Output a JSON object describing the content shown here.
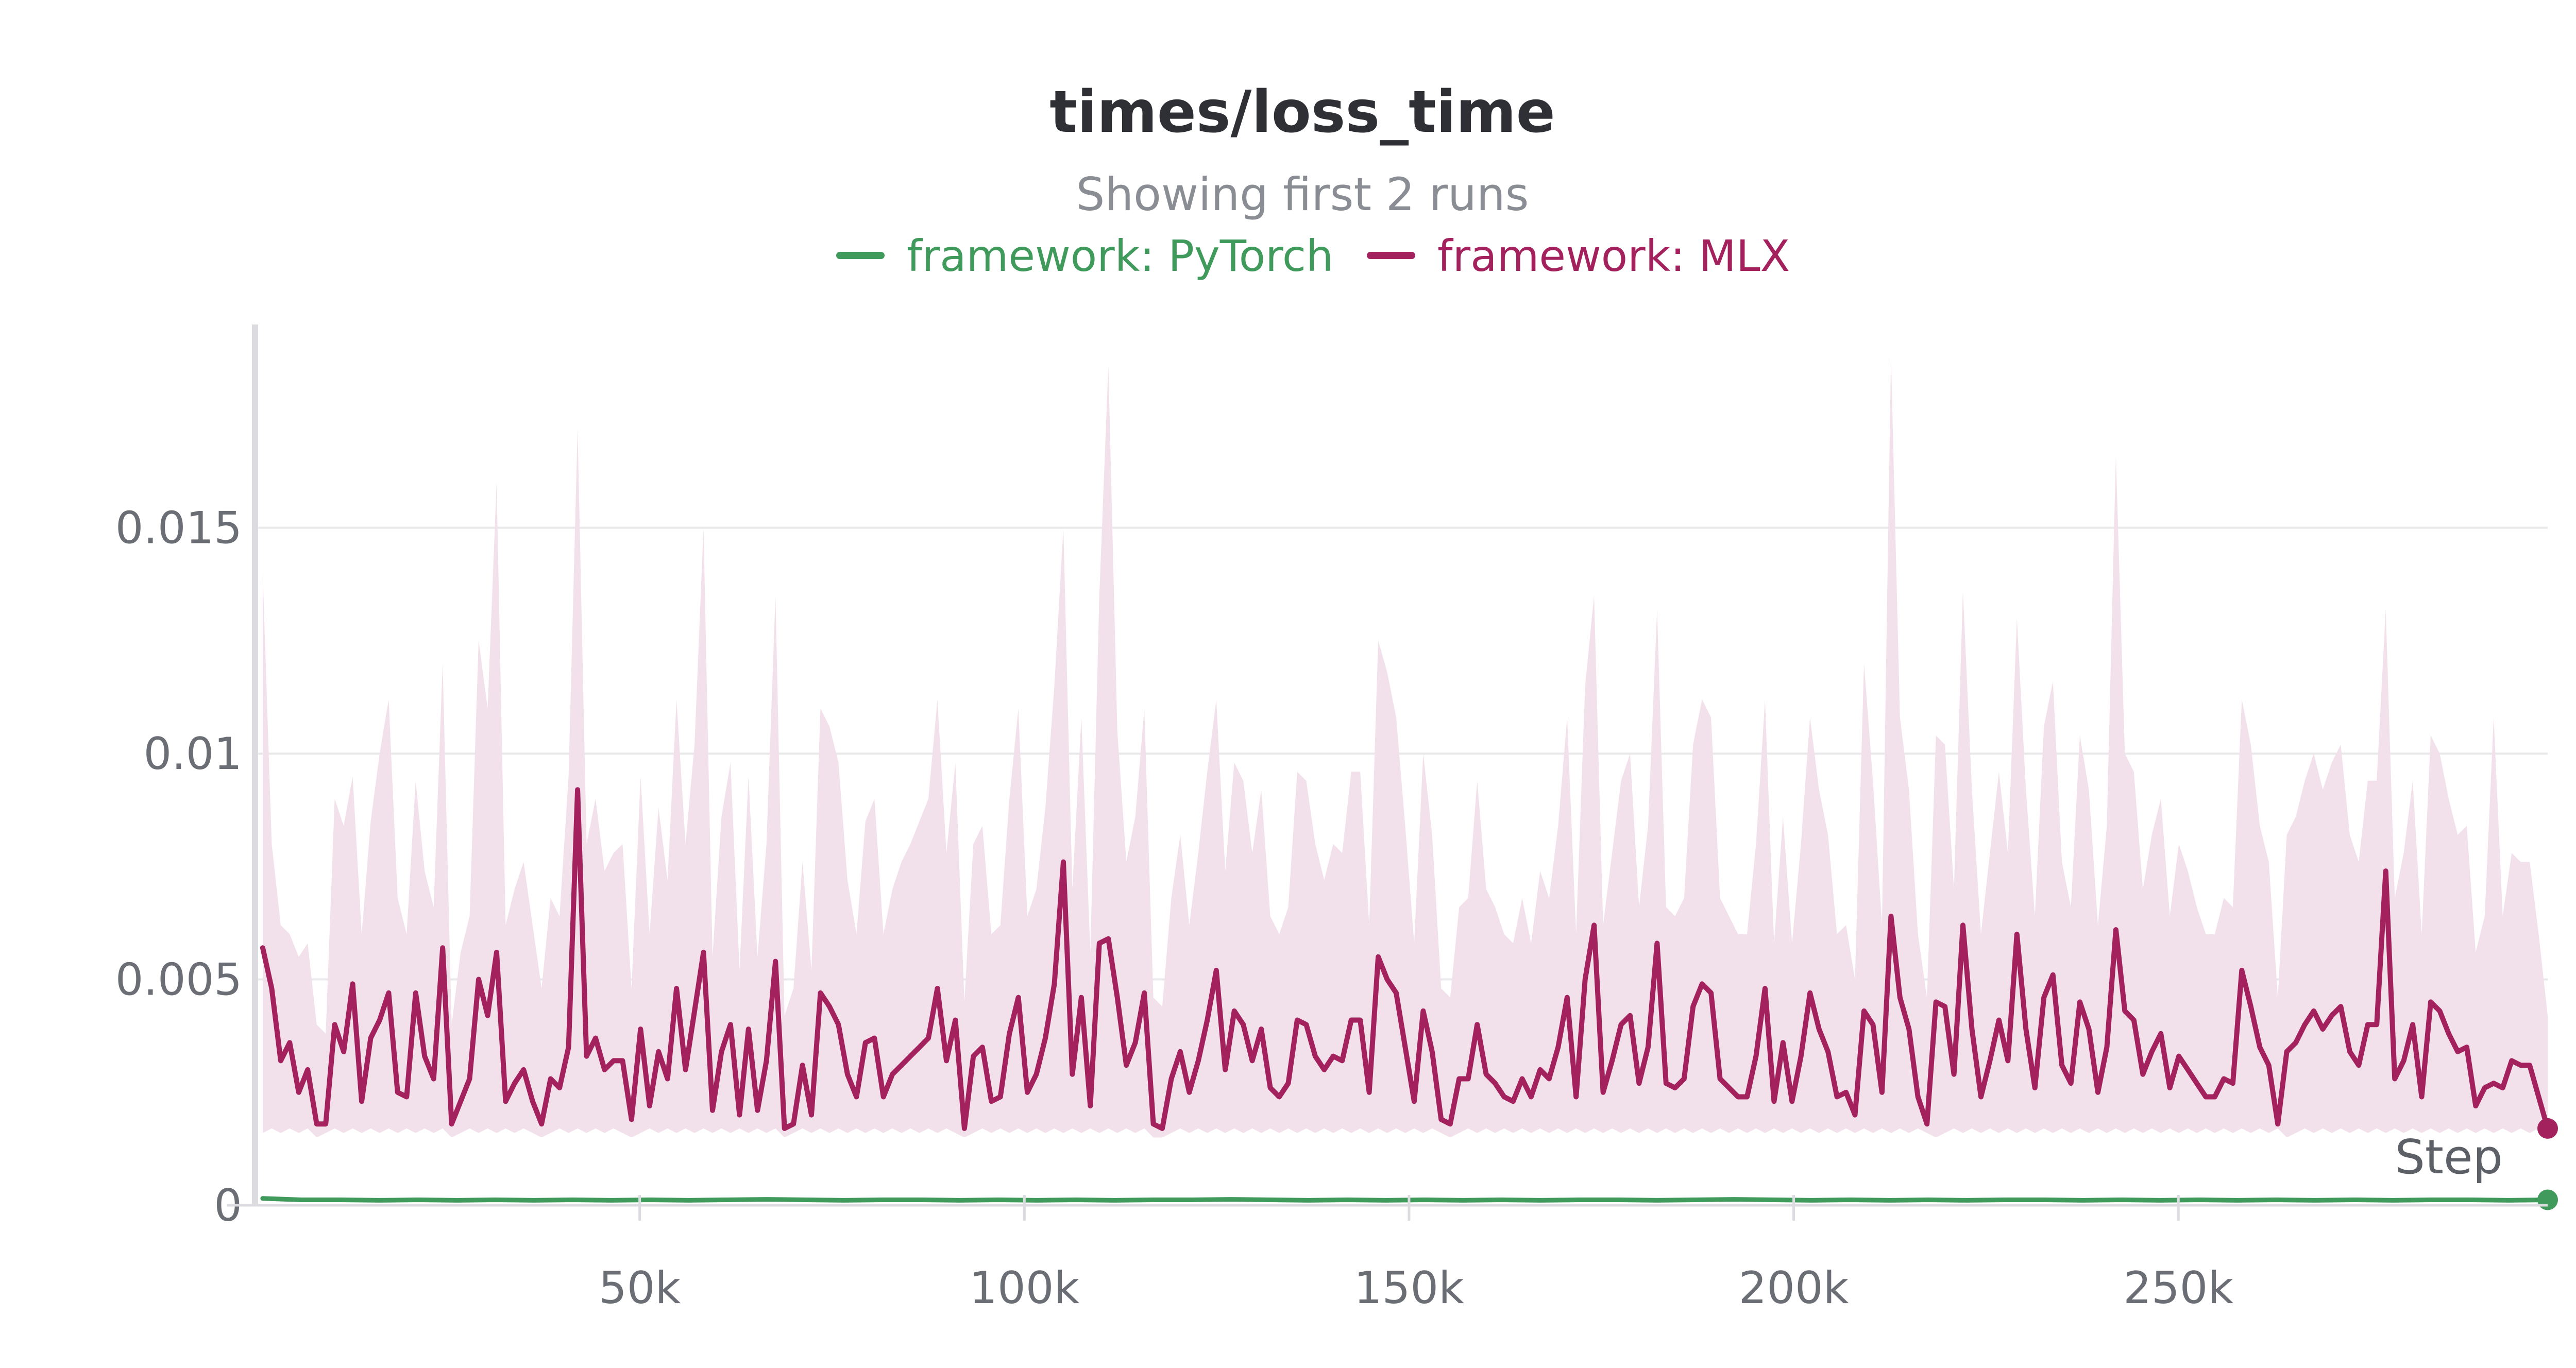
{
  "chart_data": {
    "type": "line",
    "title": "times/loss_time",
    "subtitle": "Showing first 2 runs",
    "xlabel": "Step",
    "ylabel": "",
    "xlim": [
      0,
      298000
    ],
    "ylim": [
      0,
      0.0195
    ],
    "x_ticks": [
      50000,
      100000,
      150000,
      200000,
      250000
    ],
    "x_tick_labels": [
      "50k",
      "100k",
      "150k",
      "200k",
      "250k"
    ],
    "y_ticks": [
      0,
      0.005,
      0.01,
      0.015
    ],
    "y_tick_labels": [
      "0",
      "0.005",
      "0.01",
      "0.015"
    ],
    "grid": true,
    "legend_position": "top-center",
    "colors": {
      "PyTorch": "#3f9a5c",
      "MLX": "#a3225e",
      "mlx_band": "#f2e1ea",
      "grid": "#e9e9ec",
      "axis": "#dcdce0"
    },
    "series": [
      {
        "name": "framework: PyTorch",
        "color": "#3f9a5c",
        "x_start": 1000,
        "x_end": 298000,
        "values": [
          0.00015,
          0.00012,
          0.00012,
          0.00011,
          0.00012,
          0.00011,
          0.00012,
          0.00011,
          0.00012,
          0.00011,
          0.00012,
          0.00011,
          0.00012,
          0.00013,
          0.00012,
          0.00011,
          0.00012,
          0.00012,
          0.00011,
          0.00012,
          0.00011,
          0.00012,
          0.00011,
          0.00012,
          0.00012,
          0.00013,
          0.00012,
          0.00011,
          0.00012,
          0.00011,
          0.00012,
          0.00011,
          0.00012,
          0.00011,
          0.00012,
          0.00012,
          0.00011,
          0.00012,
          0.00013,
          0.00012,
          0.00011,
          0.00012,
          0.00011,
          0.00012,
          0.00011,
          0.00012,
          0.00012,
          0.00011,
          0.00012,
          0.00011,
          0.00012,
          0.00011,
          0.00012,
          0.00011,
          0.00012,
          0.00011,
          0.00012,
          0.00012,
          0.00011,
          0.00012
        ]
      },
      {
        "name": "framework: MLX",
        "color": "#a3225e",
        "x_start": 1000,
        "x_end": 298000,
        "values": [
          0.0057,
          0.0048,
          0.0032,
          0.0036,
          0.0025,
          0.003,
          0.0018,
          0.0018,
          0.004,
          0.0034,
          0.0049,
          0.0023,
          0.0037,
          0.0041,
          0.0047,
          0.0025,
          0.0024,
          0.0047,
          0.0033,
          0.0028,
          0.0057,
          0.0018,
          0.0023,
          0.0028,
          0.005,
          0.0042,
          0.0056,
          0.0023,
          0.0027,
          0.003,
          0.0023,
          0.0018,
          0.0028,
          0.0026,
          0.0035,
          0.0092,
          0.0033,
          0.0037,
          0.003,
          0.0032,
          0.0032,
          0.0019,
          0.0039,
          0.0022,
          0.0034,
          0.0028,
          0.0048,
          0.003,
          0.0043,
          0.0056,
          0.0021,
          0.0034,
          0.004,
          0.002,
          0.0039,
          0.0021,
          0.0032,
          0.0054,
          0.0017,
          0.0018,
          0.0031,
          0.002,
          0.0047,
          0.0044,
          0.004,
          0.0029,
          0.0024,
          0.0036,
          0.0037,
          0.0024,
          0.0029,
          0.0031,
          0.0033,
          0.0035,
          0.0037,
          0.0048,
          0.0032,
          0.0041,
          0.0017,
          0.0033,
          0.0035,
          0.0023,
          0.0024,
          0.0038,
          0.0046,
          0.0025,
          0.0029,
          0.0037,
          0.0049,
          0.0076,
          0.0029,
          0.0046,
          0.0022,
          0.0058,
          0.0059,
          0.0046,
          0.0031,
          0.0036,
          0.0047,
          0.0018,
          0.0017,
          0.0028,
          0.0034,
          0.0025,
          0.0032,
          0.0041,
          0.0052,
          0.003,
          0.0043,
          0.004,
          0.0032,
          0.0039,
          0.0026,
          0.0024,
          0.0027,
          0.0041,
          0.004,
          0.0033,
          0.003,
          0.0033,
          0.0032,
          0.0041,
          0.0041,
          0.0025,
          0.0055,
          0.005,
          0.0047,
          0.0035,
          0.0023,
          0.0043,
          0.0034,
          0.0019,
          0.0018,
          0.0028,
          0.0028,
          0.004,
          0.0029,
          0.0027,
          0.0024,
          0.0023,
          0.0028,
          0.0024,
          0.003,
          0.0028,
          0.0035,
          0.0046,
          0.0024,
          0.005,
          0.0062,
          0.0025,
          0.0032,
          0.004,
          0.0042,
          0.0027,
          0.0035,
          0.0058,
          0.0027,
          0.0026,
          0.0028,
          0.0044,
          0.0049,
          0.0047,
          0.0028,
          0.0026,
          0.0024,
          0.0024,
          0.0033,
          0.0048,
          0.0023,
          0.0036,
          0.0023,
          0.0033,
          0.0047,
          0.0039,
          0.0034,
          0.0024,
          0.0025,
          0.002,
          0.0043,
          0.004,
          0.0025,
          0.0064,
          0.0046,
          0.0039,
          0.0024,
          0.0018,
          0.0045,
          0.0044,
          0.0029,
          0.0062,
          0.0039,
          0.0024,
          0.0032,
          0.0041,
          0.0032,
          0.006,
          0.0039,
          0.0026,
          0.0046,
          0.0051,
          0.0031,
          0.0027,
          0.0045,
          0.0039,
          0.0025,
          0.0035,
          0.0061,
          0.0043,
          0.0041,
          0.0029,
          0.0034,
          0.0038,
          0.0026,
          0.0033,
          0.003,
          0.0027,
          0.0024,
          0.0024,
          0.0028,
          0.0027,
          0.0052,
          0.0044,
          0.0035,
          0.0031,
          0.0018,
          0.0034,
          0.0036,
          0.004,
          0.0043,
          0.0039,
          0.0042,
          0.0044,
          0.0034,
          0.0031,
          0.004,
          0.004,
          0.0074,
          0.0028,
          0.0032,
          0.004,
          0.0024,
          0.0045,
          0.0043,
          0.0038,
          0.0034,
          0.0035,
          0.0022,
          0.0026,
          0.0027,
          0.0026,
          0.0032,
          0.0031,
          0.0031,
          0.0024,
          0.0017
        ],
        "band_upper": [
          0.014,
          0.008,
          0.0062,
          0.006,
          0.0055,
          0.0058,
          0.004,
          0.0038,
          0.009,
          0.0084,
          0.0095,
          0.006,
          0.0085,
          0.01,
          0.0112,
          0.0068,
          0.006,
          0.0094,
          0.0074,
          0.0066,
          0.012,
          0.004,
          0.0056,
          0.0064,
          0.0125,
          0.011,
          0.016,
          0.0062,
          0.007,
          0.0076,
          0.0062,
          0.0048,
          0.0068,
          0.0064,
          0.0095,
          0.0172,
          0.008,
          0.009,
          0.0074,
          0.0078,
          0.008,
          0.0048,
          0.0095,
          0.006,
          0.0088,
          0.0072,
          0.0112,
          0.008,
          0.0102,
          0.015,
          0.0055,
          0.0086,
          0.0098,
          0.0052,
          0.0095,
          0.0055,
          0.008,
          0.0135,
          0.0042,
          0.0048,
          0.0076,
          0.0052,
          0.011,
          0.0106,
          0.0098,
          0.0072,
          0.006,
          0.0085,
          0.009,
          0.006,
          0.007,
          0.0076,
          0.008,
          0.0085,
          0.009,
          0.0112,
          0.0078,
          0.0098,
          0.0045,
          0.008,
          0.0084,
          0.006,
          0.0062,
          0.009,
          0.011,
          0.0064,
          0.007,
          0.0088,
          0.0115,
          0.015,
          0.007,
          0.0108,
          0.0056,
          0.0135,
          0.0186,
          0.0105,
          0.0076,
          0.0086,
          0.011,
          0.0046,
          0.0044,
          0.0068,
          0.0082,
          0.0062,
          0.0078,
          0.0096,
          0.0112,
          0.0074,
          0.0098,
          0.0094,
          0.0078,
          0.0092,
          0.0064,
          0.006,
          0.0066,
          0.0096,
          0.0094,
          0.008,
          0.0072,
          0.008,
          0.0078,
          0.0096,
          0.0096,
          0.0062,
          0.0125,
          0.0118,
          0.0108,
          0.0084,
          0.0058,
          0.01,
          0.0082,
          0.0048,
          0.0046,
          0.0066,
          0.0068,
          0.0094,
          0.007,
          0.0066,
          0.006,
          0.0058,
          0.0068,
          0.0058,
          0.0074,
          0.0068,
          0.0084,
          0.0108,
          0.006,
          0.0115,
          0.0135,
          0.0062,
          0.0078,
          0.0094,
          0.01,
          0.0066,
          0.0084,
          0.0132,
          0.0066,
          0.0064,
          0.0068,
          0.0102,
          0.0112,
          0.0108,
          0.0068,
          0.0064,
          0.006,
          0.006,
          0.008,
          0.0112,
          0.0058,
          0.0086,
          0.0058,
          0.008,
          0.0108,
          0.0092,
          0.0082,
          0.006,
          0.0062,
          0.005,
          0.012,
          0.0094,
          0.0062,
          0.0188,
          0.0108,
          0.0092,
          0.006,
          0.0046,
          0.0104,
          0.0102,
          0.007,
          0.0136,
          0.0092,
          0.006,
          0.0078,
          0.0096,
          0.0078,
          0.013,
          0.0092,
          0.0064,
          0.0106,
          0.0116,
          0.0076,
          0.0066,
          0.0104,
          0.0092,
          0.0062,
          0.0084,
          0.0166,
          0.01,
          0.0096,
          0.007,
          0.0082,
          0.009,
          0.0064,
          0.008,
          0.0074,
          0.0066,
          0.006,
          0.006,
          0.0068,
          0.0066,
          0.0112,
          0.0102,
          0.0084,
          0.0076,
          0.0046,
          0.0082,
          0.0086,
          0.0094,
          0.01,
          0.0092,
          0.0098,
          0.0102,
          0.0082,
          0.0076,
          0.0094,
          0.0094,
          0.0132,
          0.0068,
          0.0078,
          0.0094,
          0.006,
          0.0104,
          0.01,
          0.009,
          0.0082,
          0.0084,
          0.0056,
          0.0064,
          0.0108,
          0.0064,
          0.0078,
          0.0076,
          0.0076,
          0.006,
          0.0042
        ],
        "band_lower": [
          0.0016,
          0.0017,
          0.0016,
          0.0017,
          0.0016,
          0.0017,
          0.0015,
          0.0016,
          0.0017,
          0.0016,
          0.0017,
          0.0016,
          0.0017,
          0.0016,
          0.0017,
          0.0016,
          0.0017,
          0.0016,
          0.0017,
          0.0016,
          0.0017,
          0.0015,
          0.0016,
          0.0017,
          0.0016,
          0.0017,
          0.0016,
          0.0017,
          0.0016,
          0.0017,
          0.0016,
          0.0015,
          0.0016,
          0.0017,
          0.0016,
          0.0017,
          0.0016,
          0.0017,
          0.0016,
          0.0017,
          0.0016,
          0.0015,
          0.0016,
          0.0017,
          0.0016,
          0.0017,
          0.0016,
          0.0017,
          0.0016,
          0.0017,
          0.0016,
          0.0017,
          0.0016,
          0.0017,
          0.0016,
          0.0017,
          0.0016,
          0.0017,
          0.0015,
          0.0016,
          0.0017,
          0.0016,
          0.0017,
          0.0016,
          0.0017,
          0.0016,
          0.0017,
          0.0016,
          0.0017,
          0.0016,
          0.0017,
          0.0016,
          0.0017,
          0.0016,
          0.0017,
          0.0016,
          0.0017,
          0.0016,
          0.0015,
          0.0016,
          0.0017,
          0.0016,
          0.0017,
          0.0016,
          0.0017,
          0.0016,
          0.0017,
          0.0016,
          0.0017,
          0.0016,
          0.0017,
          0.0016,
          0.0017,
          0.0016,
          0.0017,
          0.0016,
          0.0017,
          0.0016,
          0.0017,
          0.0015,
          0.0015,
          0.0016,
          0.0017,
          0.0016,
          0.0017,
          0.0016,
          0.0017,
          0.0016,
          0.0017,
          0.0016,
          0.0017,
          0.0016,
          0.0017,
          0.0016,
          0.0017,
          0.0016,
          0.0017,
          0.0016,
          0.0017,
          0.0016,
          0.0017,
          0.0016,
          0.0017,
          0.0016,
          0.0017,
          0.0016,
          0.0017,
          0.0016,
          0.0017,
          0.0016,
          0.0017,
          0.0016,
          0.0015,
          0.0016,
          0.0017,
          0.0016,
          0.0017,
          0.0016,
          0.0017,
          0.0016,
          0.0017,
          0.0016,
          0.0017,
          0.0016,
          0.0017,
          0.0016,
          0.0017,
          0.0016,
          0.0017,
          0.0016,
          0.0017,
          0.0016,
          0.0017,
          0.0016,
          0.0017,
          0.0016,
          0.0017,
          0.0016,
          0.0017,
          0.0016,
          0.0017,
          0.0016,
          0.0017,
          0.0016,
          0.0017,
          0.0016,
          0.0017,
          0.0016,
          0.0017,
          0.0016,
          0.0017,
          0.0016,
          0.0017,
          0.0016,
          0.0017,
          0.0016,
          0.0017,
          0.0016,
          0.0017,
          0.0016,
          0.0017,
          0.0016,
          0.0017,
          0.0016,
          0.0017,
          0.0016,
          0.0015,
          0.0016,
          0.0017,
          0.0016,
          0.0017,
          0.0016,
          0.0017,
          0.0016,
          0.0017,
          0.0016,
          0.0017,
          0.0016,
          0.0017,
          0.0016,
          0.0017,
          0.0016,
          0.0017,
          0.0016,
          0.0017,
          0.0016,
          0.0017,
          0.0016,
          0.0017,
          0.0016,
          0.0017,
          0.0016,
          0.0017,
          0.0016,
          0.0017,
          0.0016,
          0.0017,
          0.0016,
          0.0017,
          0.0016,
          0.0017,
          0.0016,
          0.0017,
          0.0016,
          0.0017,
          0.0015,
          0.0016,
          0.0017,
          0.0016,
          0.0017,
          0.0016,
          0.0017,
          0.0016,
          0.0017,
          0.0016,
          0.0017,
          0.0016,
          0.0017,
          0.0016,
          0.0017,
          0.0016,
          0.0017,
          0.0016,
          0.0017,
          0.0016,
          0.0017,
          0.0016,
          0.0017,
          0.0016,
          0.0017,
          0.0016,
          0.0017,
          0.0016,
          0.0017,
          0.0016,
          0.0017,
          0.0016,
          0.0017,
          0.0015
        ]
      }
    ]
  }
}
